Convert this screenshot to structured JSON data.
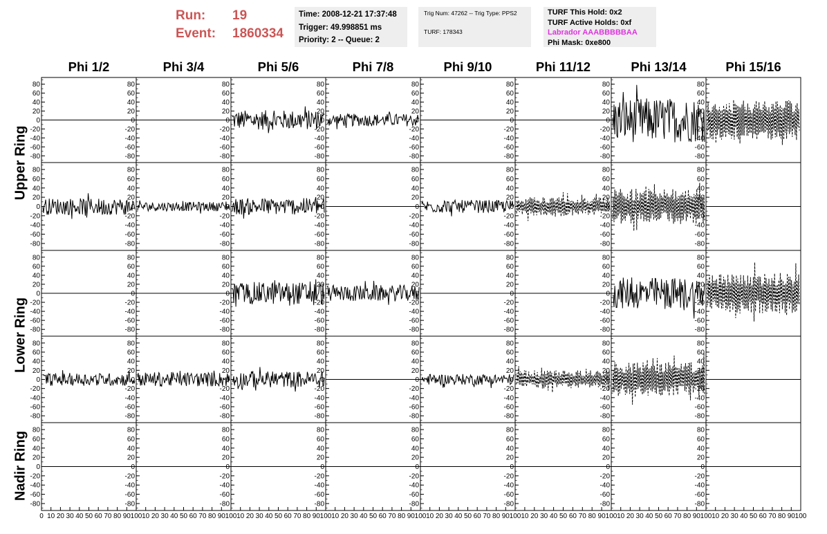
{
  "header": {
    "run_label": "Run:",
    "run_value": "19",
    "event_label": "Event:",
    "event_value": "1860334"
  },
  "time_panel": {
    "time": "Time: 2008-12-21 17:37:48",
    "trigger": "Trigger: 49.998851 ms",
    "priority": "Priority: 2 -- Queue: 2"
  },
  "trig_panel": {
    "trig": "Trig Num: 47262 -- Trig Type: PPS2",
    "turf": "TURF: 178343"
  },
  "turf_panel": {
    "this_hold": "TURF This Hold: 0x2",
    "active_holds": "TURF Active Holds: 0xf",
    "labrador": "Labrador AAABBBBBAA",
    "phi_mask": "Phi Mask: 0xe800"
  },
  "colors": {
    "run_text": "#cc5555",
    "labrador_text": "#dd33dd",
    "panel_bg": "#eeeeee"
  },
  "chart_data": {
    "type": "line",
    "columns": [
      "Phi 1/2",
      "Phi 3/4",
      "Phi 5/6",
      "Phi 7/8",
      "Phi 9/10",
      "Phi 11/12",
      "Phi 13/14",
      "Phi 15/16"
    ],
    "ring_labels": [
      "Upper Ring",
      "Lower Ring",
      "Nadir Ring"
    ],
    "rows": 5,
    "ylim": [
      -95,
      95
    ],
    "xlim": [
      0,
      100
    ],
    "yticks": [
      80,
      60,
      40,
      20,
      0,
      -20,
      -40,
      -60,
      -80
    ],
    "xticks": [
      0,
      10,
      20,
      30,
      40,
      50,
      60,
      70,
      80,
      90,
      100
    ],
    "grid": false,
    "cells": [
      [
        {
          "style": "flat"
        },
        {
          "style": "flat"
        },
        {
          "style": "solid",
          "amp": 22
        },
        {
          "style": "solid",
          "amp": 14
        },
        {
          "style": "flat"
        },
        {
          "style": "flat"
        },
        {
          "style": "solid",
          "amp": 50
        },
        {
          "style": "dashed",
          "amp": 45
        }
      ],
      [
        {
          "style": "solid",
          "amp": 18
        },
        {
          "style": "solid",
          "amp": 10
        },
        {
          "style": "solid",
          "amp": 18
        },
        {
          "style": "flat"
        },
        {
          "style": "solid",
          "amp": 14
        },
        {
          "style": "dashed",
          "amp": 20
        },
        {
          "style": "dashed",
          "amp": 38
        },
        {
          "style": "flat"
        }
      ],
      [
        {
          "style": "flat"
        },
        {
          "style": "flat"
        },
        {
          "style": "solid",
          "amp": 25
        },
        {
          "style": "solid",
          "amp": 18
        },
        {
          "style": "flat"
        },
        {
          "style": "flat"
        },
        {
          "style": "solid",
          "amp": 35
        },
        {
          "style": "dashed",
          "amp": 45
        }
      ],
      [
        {
          "style": "solid",
          "amp": 14
        },
        {
          "style": "solid",
          "amp": 16
        },
        {
          "style": "solid",
          "amp": 18
        },
        {
          "style": "flat"
        },
        {
          "style": "solid",
          "amp": 12
        },
        {
          "style": "dashed",
          "amp": 20
        },
        {
          "style": "dashed",
          "amp": 38
        },
        {
          "style": "flat"
        }
      ],
      [
        {
          "style": "flat"
        },
        {
          "style": "flat"
        },
        {
          "style": "flat"
        },
        {
          "style": "flat"
        },
        {
          "style": "flat"
        },
        {
          "style": "flat"
        },
        {
          "style": "flat"
        },
        {
          "style": "flat"
        }
      ]
    ]
  }
}
